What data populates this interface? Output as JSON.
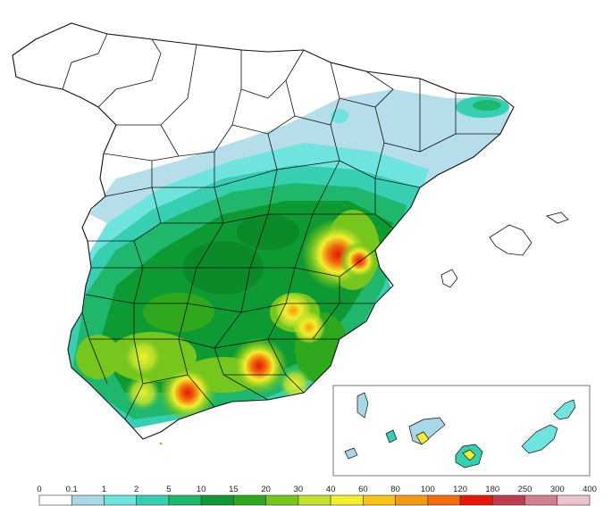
{
  "map": {
    "type": "precipitation-choropleth",
    "regions": [
      "Iberian Peninsula",
      "Balearic Islands",
      "Canary Islands (inset)"
    ],
    "inset_present": true
  },
  "legend": {
    "ticks": [
      "0",
      "0.1",
      "1",
      "2",
      "5",
      "10",
      "15",
      "20",
      "30",
      "40",
      "60",
      "80",
      "100",
      "120",
      "180",
      "250",
      "300",
      "400"
    ],
    "colors": [
      "#ffffff",
      "#a8d8e6",
      "#6fe3dd",
      "#37cfb2",
      "#1fb76b",
      "#0e9a32",
      "#2fa81e",
      "#75c61d",
      "#c3e22c",
      "#f3ef2d",
      "#f6c316",
      "#f39a0e",
      "#f16a0b",
      "#e6170a",
      "#be3c4d",
      "#cf7f8f",
      "#ecc4cc"
    ]
  }
}
